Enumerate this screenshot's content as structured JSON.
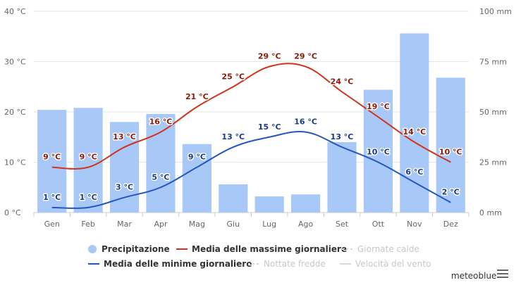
{
  "chart_data": {
    "type": "bar+line",
    "categories": [
      "Gen",
      "Feb",
      "Mar",
      "Apr",
      "Mag",
      "Giu",
      "Lug",
      "Ago",
      "Set",
      "Ott",
      "Nov",
      "Dez"
    ],
    "y_left": {
      "ticks": [
        "0 °C",
        "10 °C",
        "20 °C",
        "30 °C",
        "40 °C"
      ],
      "range": [
        0,
        40
      ],
      "unit": "°C"
    },
    "y_right": {
      "ticks": [
        "0 mm",
        "25 mm",
        "50 mm",
        "75 mm",
        "100 mm"
      ],
      "range": [
        0,
        100
      ],
      "unit": "mm"
    },
    "series": [
      {
        "name": "Precipitazione",
        "type": "bar",
        "axis": "right",
        "color": "#a8c8f8",
        "values": [
          51,
          52,
          45,
          49,
          34,
          14,
          8,
          9,
          35,
          61,
          89,
          67
        ]
      },
      {
        "name": "Media delle massime giornaliere",
        "type": "line",
        "axis": "left",
        "color": "#d0341a",
        "values": [
          9,
          9,
          13,
          16,
          21,
          25,
          29,
          29,
          24,
          19,
          14,
          10
        ],
        "labels": [
          "9 °C",
          "9 °C",
          "13 °C",
          "16 °C",
          "21 °C",
          "25 °C",
          "29 °C",
          "29 °C",
          "24 °C",
          "19 °C",
          "14 °C",
          "10 °C"
        ]
      },
      {
        "name": "Media delle minime giornaliere",
        "type": "line",
        "axis": "left",
        "color": "#2456c0",
        "values": [
          1,
          1,
          3,
          5,
          9,
          13,
          15,
          16,
          13,
          10,
          6,
          2
        ],
        "labels": [
          "1 °C",
          "1 °C",
          "3 °C",
          "5 °C",
          "9 °C",
          "13 °C",
          "15 °C",
          "16 °C",
          "13 °C",
          "10 °C",
          "6 °C",
          "2 °C"
        ]
      }
    ],
    "grid": true
  },
  "legend": {
    "items": [
      {
        "label": "Precipitazione",
        "symbol": "dot",
        "color": "#a8c8f8",
        "active": true
      },
      {
        "label": "Media delle massime giornaliere",
        "symbol": "line",
        "color": "#d0341a",
        "active": true
      },
      {
        "label": "Giornate calde",
        "symbol": "dash",
        "color": "#d8d8d8",
        "active": false
      },
      {
        "label": "Media delle minime giornaliere",
        "symbol": "line",
        "color": "#2456c0",
        "active": true
      },
      {
        "label": "Nottate fredde",
        "symbol": "dash",
        "color": "#d8d8d8",
        "active": false
      },
      {
        "label": "Velocità del vento",
        "symbol": "line",
        "color": "#d8d8d8",
        "active": false
      }
    ]
  },
  "brand": "meteoblue",
  "icons": {
    "menu": "hamburger-menu-icon"
  }
}
